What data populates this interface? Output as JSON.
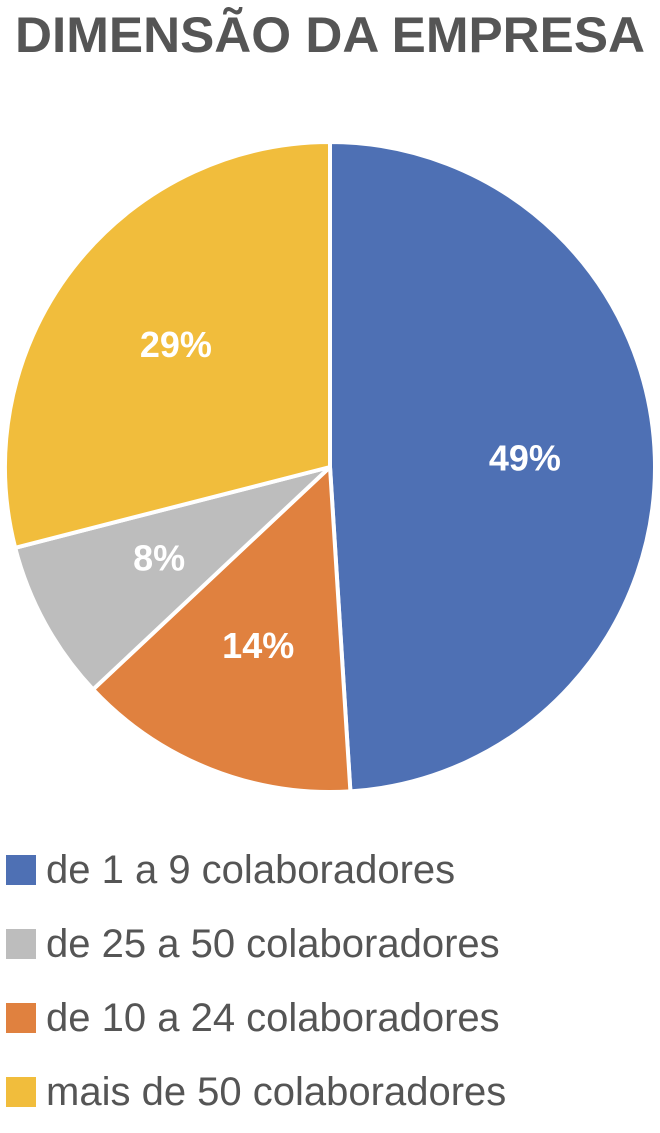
{
  "chart_data": {
    "type": "pie",
    "title": "DIMENSÃO DA EMPRESA",
    "categories": [
      "de 1 a 9 colaboradores",
      "de 10 a 24 colaboradores",
      "de 25 a 50 colaboradores",
      "mais de 50 colaboradores"
    ],
    "values": [
      49,
      14,
      8,
      29
    ],
    "value_labels": [
      "49%",
      "14%",
      "8%",
      "29%"
    ],
    "colors": [
      "#4e70b4",
      "#e0813f",
      "#bdbdbd",
      "#f1bd3c"
    ]
  }
}
